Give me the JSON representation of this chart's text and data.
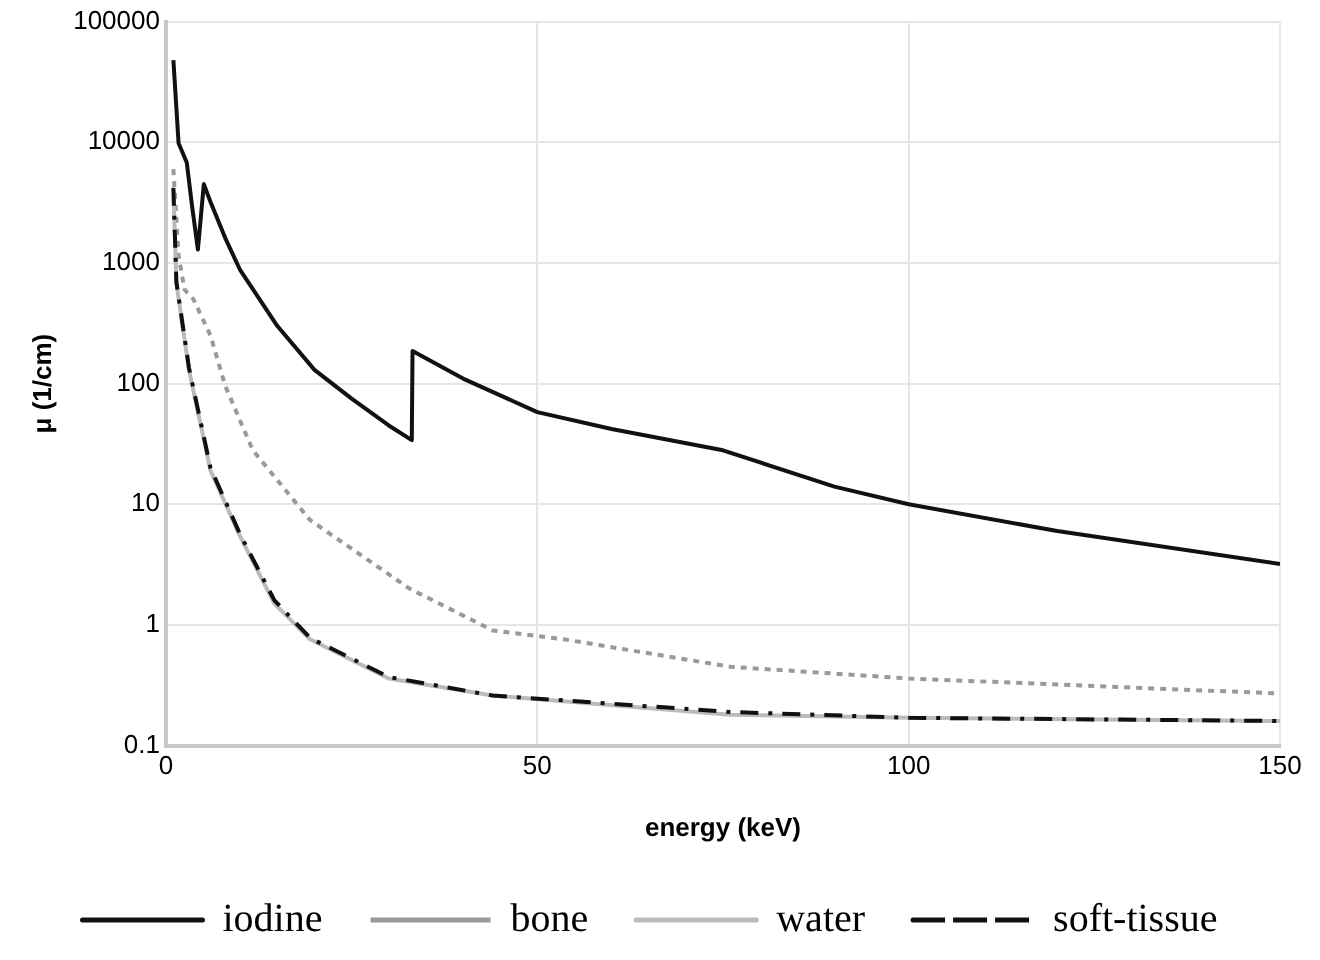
{
  "chart_data": {
    "type": "line",
    "xlabel": "energy (keV)",
    "ylabel": "μ (1/cm)",
    "log": "y",
    "grid": true,
    "legend": "bottom",
    "marker": "none",
    "xlim": [
      0,
      150
    ],
    "xticks": [
      0,
      50,
      100,
      150
    ],
    "ylim": [
      0.1,
      100000
    ],
    "yticks": [
      0.1,
      1,
      10,
      100,
      1000,
      10000,
      100000
    ],
    "series": [
      {
        "name": "iodine",
        "color": "#111111",
        "line_style": "solid",
        "x": [
          1,
          1.7,
          2.8,
          3.5,
          4.3,
          5.1,
          6,
          8,
          10,
          15,
          20,
          25,
          30,
          33.1,
          33.2,
          40,
          50,
          60,
          75,
          90,
          100,
          120,
          150
        ],
        "values": [
          48000,
          9800,
          6800,
          3000,
          1290,
          4500,
          3200,
          1600,
          870,
          300,
          130,
          75,
          45,
          34,
          186,
          110,
          58,
          42,
          28,
          14,
          10,
          6,
          3.2
        ]
      },
      {
        "name": "bone",
        "color": "#999999",
        "line_style": "dotted",
        "x": [
          1,
          1.7,
          2.5,
          3.7,
          6,
          8,
          11.7,
          19.4,
          32.8,
          44,
          53.6,
          76,
          100,
          150
        ],
        "values": [
          6000,
          1150,
          600,
          500,
          250,
          95,
          28,
          7.4,
          2,
          0.9,
          0.76,
          0.45,
          0.36,
          0.27
        ]
      },
      {
        "name": "water",
        "color": "#bbbbbb",
        "line_style": "solid",
        "x": [
          1,
          1.4,
          3.1,
          6,
          10,
          14.6,
          19.4,
          30,
          44,
          76,
          100,
          150
        ],
        "values": [
          4000,
          680,
          130,
          19,
          5.4,
          1.5,
          0.76,
          0.36,
          0.26,
          0.18,
          0.17,
          0.16
        ]
      },
      {
        "name": "soft-tissue",
        "color": "#111111",
        "line_style": "dashdot",
        "x": [
          1,
          1.4,
          3.1,
          6,
          10,
          14.6,
          19.4,
          30,
          44,
          76,
          100,
          150
        ],
        "values": [
          4200,
          700,
          135,
          20,
          5.6,
          1.6,
          0.78,
          0.37,
          0.26,
          0.19,
          0.17,
          0.16
        ]
      }
    ]
  }
}
